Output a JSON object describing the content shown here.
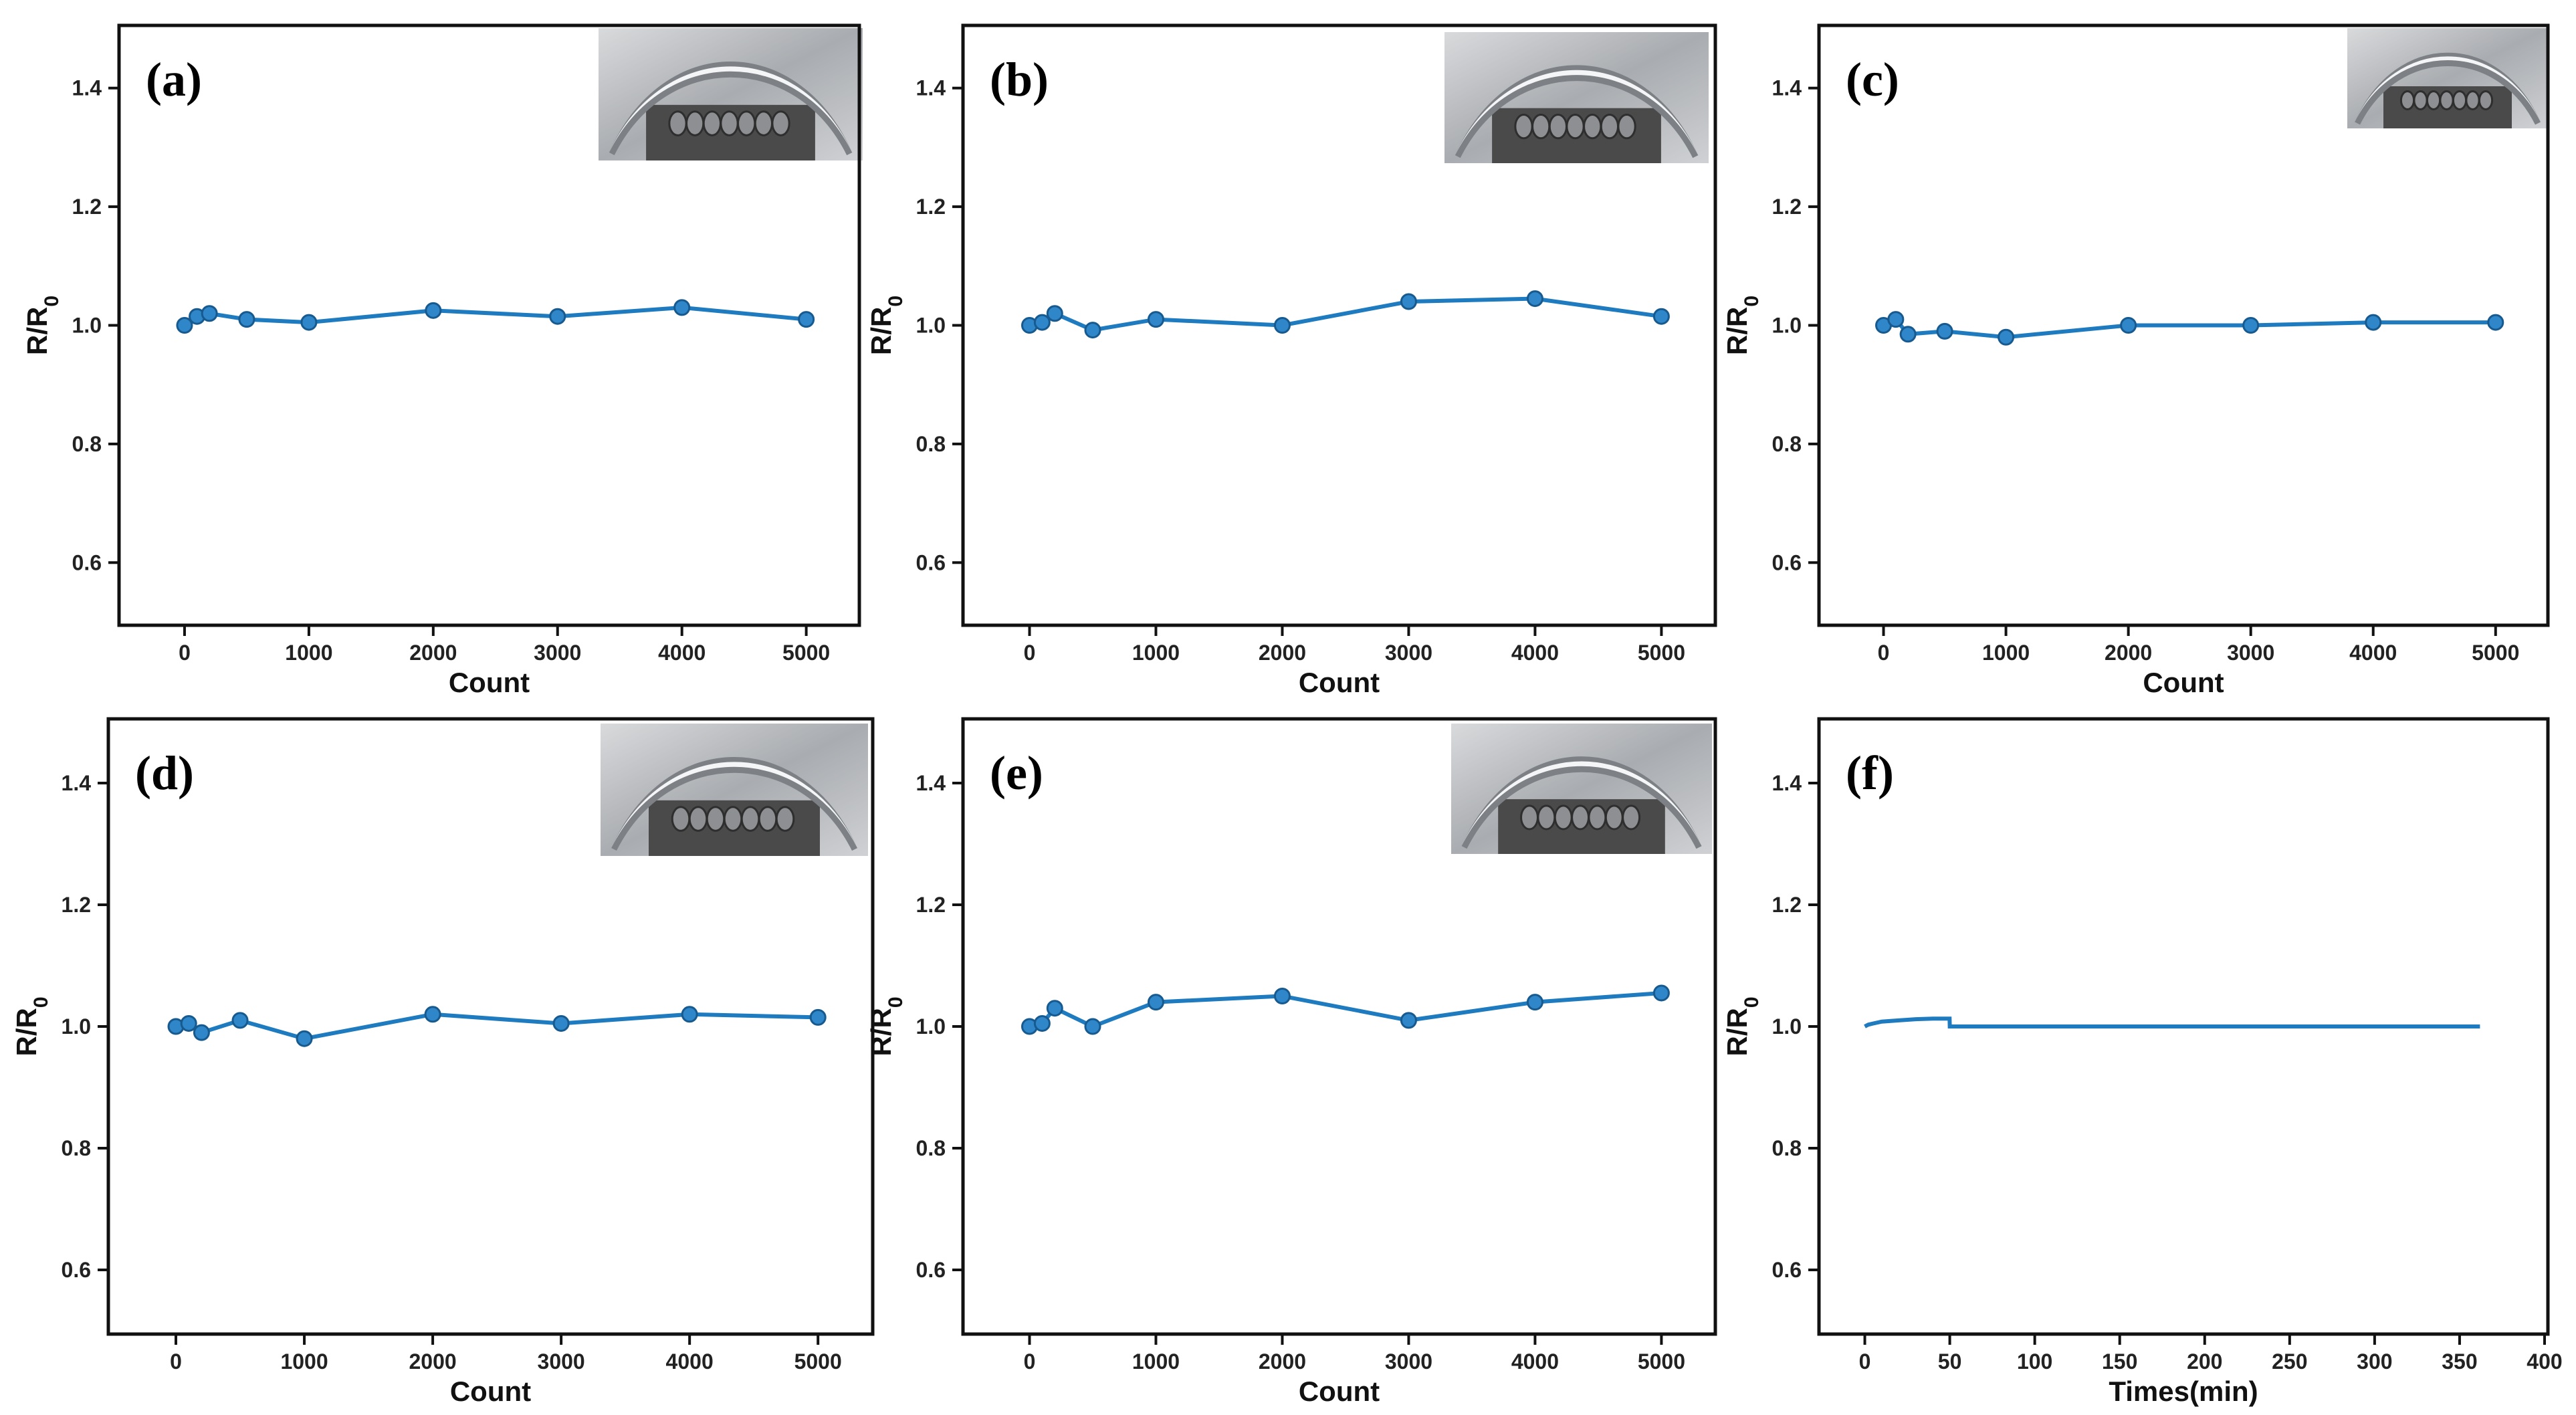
{
  "chart_data": [
    {
      "panel": "(a)",
      "type": "line",
      "x": [
        0,
        100,
        200,
        500,
        1000,
        2000,
        3000,
        4000,
        5000
      ],
      "y": [
        1.0,
        1.015,
        1.02,
        1.01,
        1.005,
        1.025,
        1.015,
        1.03,
        1.01
      ],
      "xlabel": "Count",
      "ylabel": "R/R0",
      "ylabel_main": "R/R",
      "ylabel_sub": "0",
      "xlim": [
        -500,
        5400
      ],
      "ylim": [
        0.5,
        1.5
      ],
      "xticks": [
        0,
        1000,
        2000,
        3000,
        4000,
        5000
      ],
      "xtick_labels": [
        "0",
        "1000",
        "2000",
        "3000",
        "4000",
        "5000"
      ],
      "yticks": [
        0.6,
        0.8,
        1.0,
        1.2,
        1.4
      ],
      "ytick_labels": [
        "0.6",
        "0.8",
        "1.0",
        "1.2",
        "1.4"
      ],
      "markers": true,
      "inset_photo": "bending-sample-photo"
    },
    {
      "panel": "(b)",
      "type": "line",
      "x": [
        0,
        100,
        200,
        500,
        1000,
        2000,
        3000,
        4000,
        5000
      ],
      "y": [
        1.0,
        1.005,
        1.02,
        0.992,
        1.01,
        1.0,
        1.04,
        1.045,
        1.015
      ],
      "xlabel": "Count",
      "ylabel": "R/R0",
      "ylabel_main": "R/R",
      "ylabel_sub": "0",
      "xlim": [
        -500,
        5400
      ],
      "ylim": [
        0.5,
        1.5
      ],
      "xticks": [
        0,
        1000,
        2000,
        3000,
        4000,
        5000
      ],
      "xtick_labels": [
        "0",
        "1000",
        "2000",
        "3000",
        "4000",
        "5000"
      ],
      "yticks": [
        0.6,
        0.8,
        1.0,
        1.2,
        1.4
      ],
      "ytick_labels": [
        "0.6",
        "0.8",
        "1.0",
        "1.2",
        "1.4"
      ],
      "markers": true,
      "inset_photo": "bending-sample-photo"
    },
    {
      "panel": "(c)",
      "type": "line",
      "x": [
        0,
        100,
        200,
        500,
        1000,
        2000,
        3000,
        4000,
        5000
      ],
      "y": [
        1.0,
        1.01,
        0.985,
        0.99,
        0.98,
        1.0,
        1.0,
        1.005,
        1.005
      ],
      "xlabel": "Count",
      "ylabel": "R/R0",
      "ylabel_main": "R/R",
      "ylabel_sub": "0",
      "xlim": [
        -500,
        5400
      ],
      "ylim": [
        0.5,
        1.5
      ],
      "xticks": [
        0,
        1000,
        2000,
        3000,
        4000,
        5000
      ],
      "xtick_labels": [
        "0",
        "1000",
        "2000",
        "3000",
        "4000",
        "5000"
      ],
      "yticks": [
        0.6,
        0.8,
        1.0,
        1.2,
        1.4
      ],
      "ytick_labels": [
        "0.6",
        "0.8",
        "1.0",
        "1.2",
        "1.4"
      ],
      "markers": true,
      "inset_photo": "bending-sample-photo"
    },
    {
      "panel": "(d)",
      "type": "line",
      "x": [
        0,
        100,
        200,
        500,
        1000,
        2000,
        3000,
        4000,
        5000
      ],
      "y": [
        1.0,
        1.005,
        0.99,
        1.01,
        0.98,
        1.02,
        1.005,
        1.02,
        1.015
      ],
      "xlabel": "Count",
      "ylabel": "R/R0",
      "ylabel_main": "R/R",
      "ylabel_sub": "0",
      "xlim": [
        -500,
        5400
      ],
      "ylim": [
        0.5,
        1.5
      ],
      "xticks": [
        0,
        1000,
        2000,
        3000,
        4000,
        5000
      ],
      "xtick_labels": [
        "0",
        "1000",
        "2000",
        "3000",
        "4000",
        "5000"
      ],
      "yticks": [
        0.6,
        0.8,
        1.0,
        1.2,
        1.4
      ],
      "ytick_labels": [
        "0.6",
        "0.8",
        "1.0",
        "1.2",
        "1.4"
      ],
      "markers": true,
      "inset_photo": "bending-sample-photo"
    },
    {
      "panel": "(e)",
      "type": "line",
      "x": [
        0,
        100,
        200,
        500,
        1000,
        2000,
        3000,
        4000,
        5000
      ],
      "y": [
        1.0,
        1.005,
        1.03,
        1.0,
        1.04,
        1.05,
        1.01,
        1.04,
        1.055
      ],
      "xlabel": "Count",
      "ylabel": "R/R0",
      "ylabel_main": "R/R",
      "ylabel_sub": "0",
      "xlim": [
        -500,
        5400
      ],
      "ylim": [
        0.5,
        1.5
      ],
      "xticks": [
        0,
        1000,
        2000,
        3000,
        4000,
        5000
      ],
      "xtick_labels": [
        "0",
        "1000",
        "2000",
        "3000",
        "4000",
        "5000"
      ],
      "yticks": [
        0.6,
        0.8,
        1.0,
        1.2,
        1.4
      ],
      "ytick_labels": [
        "0.6",
        "0.8",
        "1.0",
        "1.2",
        "1.4"
      ],
      "markers": true,
      "inset_photo": "bending-sample-photo"
    },
    {
      "panel": "(f)",
      "type": "line",
      "x": [
        0,
        2,
        5,
        10,
        20,
        30,
        40,
        49.9,
        50,
        100,
        200,
        300,
        362
      ],
      "y": [
        1.0,
        1.003,
        1.005,
        1.008,
        1.01,
        1.012,
        1.013,
        1.013,
        1.0,
        1.0,
        1.0,
        1.0,
        1.0
      ],
      "xlabel": "Times(min)",
      "ylabel": "R/R0",
      "ylabel_main": "R/R",
      "ylabel_sub": "0",
      "xlim": [
        -25,
        400
      ],
      "ylim": [
        0.5,
        1.5
      ],
      "xticks": [
        0,
        50,
        100,
        150,
        200,
        250,
        300,
        350,
        400
      ],
      "xtick_labels": [
        "0",
        "50",
        "100",
        "150",
        "200",
        "250",
        "300",
        "350",
        "400"
      ],
      "yticks": [
        0.6,
        0.8,
        1.0,
        1.2,
        1.4
      ],
      "ytick_labels": [
        "0.6",
        "0.8",
        "1.0",
        "1.2",
        "1.4"
      ],
      "markers": false,
      "inset_photo": null
    }
  ],
  "colors": {
    "series": "#1f7bbf",
    "marker": "#2f86c8",
    "axis": "#111111"
  }
}
